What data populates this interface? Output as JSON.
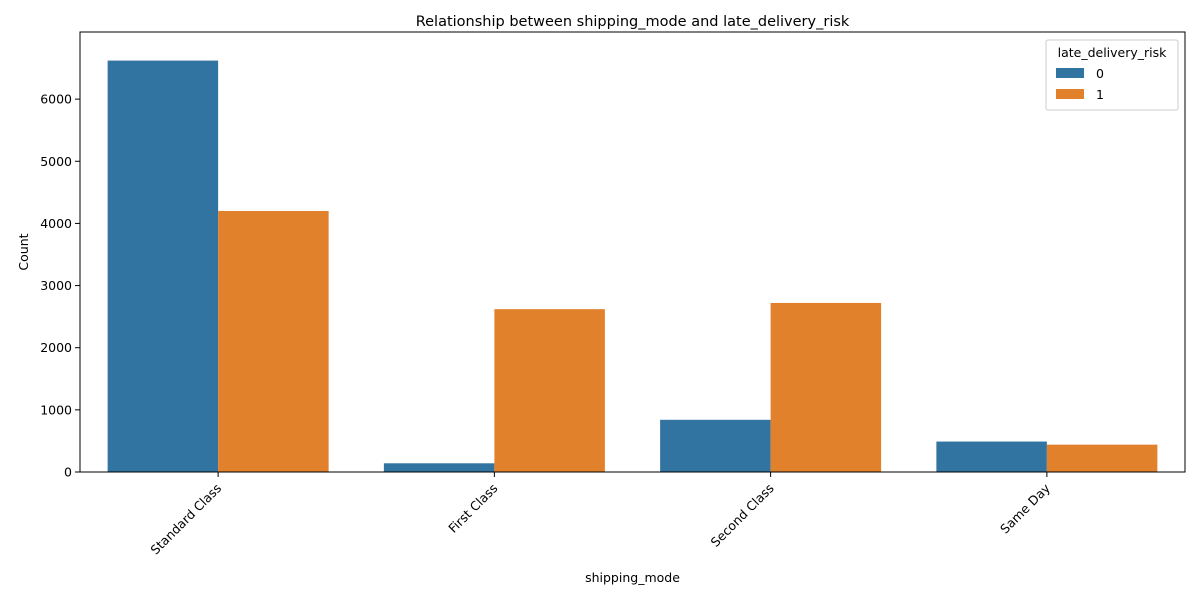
{
  "chart_data": {
    "type": "bar",
    "title": "Relationship between shipping_mode and late_delivery_risk",
    "xlabel": "shipping_mode",
    "ylabel": "Count",
    "categories": [
      "Standard Class",
      "First Class",
      "Second Class",
      "Same Day"
    ],
    "series": [
      {
        "name": "0",
        "color": "#3274a1",
        "values": [
          6620,
          140,
          840,
          490
        ]
      },
      {
        "name": "1",
        "color": "#e1812c",
        "values": [
          4200,
          2620,
          2720,
          440
        ]
      }
    ],
    "ylim": [
      0,
      7080
    ],
    "yticks": [
      0,
      1000,
      2000,
      3000,
      4000,
      5000,
      6000
    ],
    "grid": false,
    "legend": {
      "title": "late_delivery_risk",
      "position": "top-right"
    }
  }
}
